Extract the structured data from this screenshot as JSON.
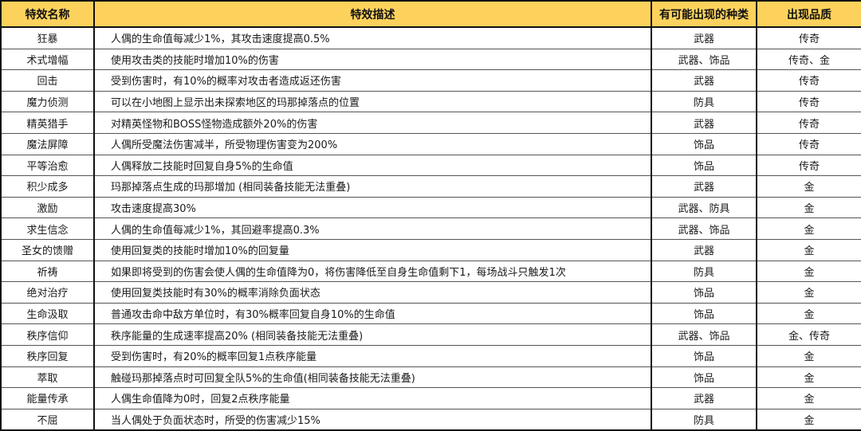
{
  "header": {
    "name": "特效名称",
    "description": "特效描述",
    "kinds": "有可能出现的种类",
    "quality": "出现品质"
  },
  "colors": {
    "header_bg": "#fdd25c",
    "border": "#111111"
  },
  "rows": [
    {
      "name": "狂暴",
      "desc": "人偶的生命值每减少1%，其攻击速度提高0.5%",
      "kind": "武器",
      "quality": "传奇"
    },
    {
      "name": "术式增幅",
      "desc": "使用攻击类的技能时增加10%的伤害",
      "kind": "武器、饰品",
      "quality": "传奇、金"
    },
    {
      "name": "回击",
      "desc": "受到伤害时，有10%的概率对攻击者造成返还伤害",
      "kind": "武器",
      "quality": "传奇"
    },
    {
      "name": "魔力侦测",
      "desc": "可以在小地图上显示出未探索地区的玛那掉落点的位置",
      "kind": "防具",
      "quality": "传奇"
    },
    {
      "name": "精英猎手",
      "desc": "对精英怪物和BOSS怪物造成额外20%的伤害",
      "kind": "武器",
      "quality": "传奇"
    },
    {
      "name": "魔法屏障",
      "desc": "人偶所受魔法伤害减半，所受物理伤害变为200%",
      "kind": "饰品",
      "quality": "传奇"
    },
    {
      "name": "平等治愈",
      "desc": "人偶释放二技能时回复自身5%的生命值",
      "kind": "饰品",
      "quality": "传奇"
    },
    {
      "name": "积少成多",
      "desc": "玛那掉落点生成的玛那增加 (相同装备技能无法重叠)",
      "kind": "武器",
      "quality": "金"
    },
    {
      "name": "激励",
      "desc": "攻击速度提高30%",
      "kind": "武器、防具",
      "quality": "金"
    },
    {
      "name": "求生信念",
      "desc": "人偶的生命值每减少1%，其回避率提高0.3%",
      "kind": "武器、饰品",
      "quality": "金"
    },
    {
      "name": "圣女的馈赠",
      "desc": "使用回复类的技能时增加10%的回复量",
      "kind": "武器",
      "quality": "金"
    },
    {
      "name": "祈祷",
      "desc": "如果即将受到的伤害会使人偶的生命值降为0，将伤害降低至自身生命值剩下1，每场战斗只触发1次",
      "kind": "防具",
      "quality": "金"
    },
    {
      "name": "绝对治疗",
      "desc": "使用回复类技能时有30%的概率消除负面状态",
      "kind": "饰品",
      "quality": "金"
    },
    {
      "name": "生命汲取",
      "desc": "普通攻击命中敌方单位时，有30%概率回复自身10%的生命值",
      "kind": "饰品",
      "quality": "金"
    },
    {
      "name": "秩序信仰",
      "desc": "秩序能量的生成速率提高20% (相同装备技能无法重叠)",
      "kind": "武器、饰品",
      "quality": "金、传奇"
    },
    {
      "name": "秩序回复",
      "desc": "受到伤害时，有20%的概率回复1点秩序能量",
      "kind": "饰品",
      "quality": "金"
    },
    {
      "name": "萃取",
      "desc": "触碰玛那掉落点时可回复全队5%的生命值(相同装备技能无法重叠)",
      "kind": "饰品",
      "quality": "金"
    },
    {
      "name": "能量传承",
      "desc": "人偶生命值降为0时，回复2点秩序能量",
      "kind": "武器",
      "quality": "金"
    },
    {
      "name": "不屈",
      "desc": "当人偶处于负面状态时，所受的伤害减少15%",
      "kind": "防具",
      "quality": "金"
    }
  ]
}
